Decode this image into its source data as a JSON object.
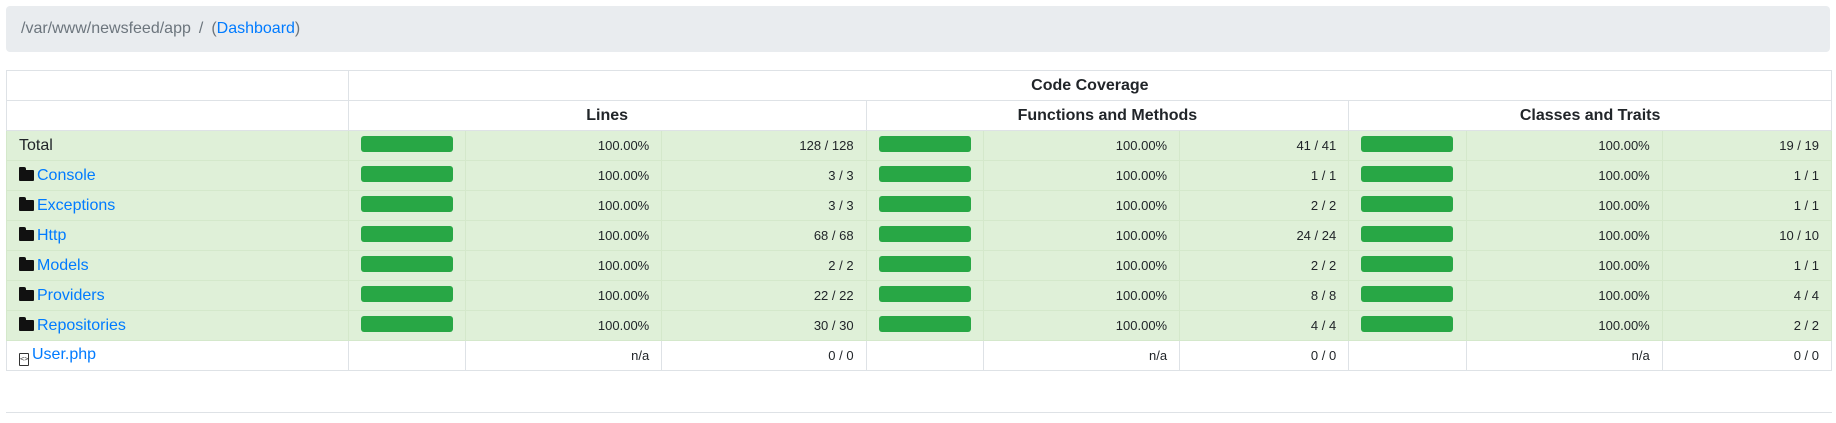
{
  "breadcrumb": {
    "path": "/var/www/newsfeed/app",
    "separator": "/",
    "open_paren": "(",
    "link": "Dashboard",
    "close_paren": ")"
  },
  "table": {
    "header_main": "Code Coverage",
    "header_lines": "Lines",
    "header_functions": "Functions and Methods",
    "header_classes": "Classes and Traits"
  },
  "rows": [
    {
      "name": "Total",
      "lines_pct": "100.00%",
      "lines": "128 / 128",
      "lines_fill": 1.0,
      "fn_pct": "100.00%",
      "fn": "41 / 41",
      "fn_fill": 1.0,
      "cls_pct": "100.00%",
      "cls": "19 / 19",
      "cls_fill": 1.0
    },
    {
      "name": "Console",
      "lines_pct": "100.00%",
      "lines": "3 / 3",
      "lines_fill": 1.0,
      "fn_pct": "100.00%",
      "fn": "1 / 1",
      "fn_fill": 1.0,
      "cls_pct": "100.00%",
      "cls": "1 / 1",
      "cls_fill": 1.0
    },
    {
      "name": "Exceptions",
      "lines_pct": "100.00%",
      "lines": "3 / 3",
      "lines_fill": 1.0,
      "fn_pct": "100.00%",
      "fn": "2 / 2",
      "fn_fill": 1.0,
      "cls_pct": "100.00%",
      "cls": "1 / 1",
      "cls_fill": 1.0
    },
    {
      "name": "Http",
      "lines_pct": "100.00%",
      "lines": "68 / 68",
      "lines_fill": 1.0,
      "fn_pct": "100.00%",
      "fn": "24 / 24",
      "fn_fill": 1.0,
      "cls_pct": "100.00%",
      "cls": "10 / 10",
      "cls_fill": 1.0
    },
    {
      "name": "Models",
      "lines_pct": "100.00%",
      "lines": "2 / 2",
      "lines_fill": 1.0,
      "fn_pct": "100.00%",
      "fn": "2 / 2",
      "fn_fill": 1.0,
      "cls_pct": "100.00%",
      "cls": "1 / 1",
      "cls_fill": 1.0
    },
    {
      "name": "Providers",
      "lines_pct": "100.00%",
      "lines": "22 / 22",
      "lines_fill": 1.0,
      "fn_pct": "100.00%",
      "fn": "8 / 8",
      "fn_fill": 1.0,
      "cls_pct": "100.00%",
      "cls": "4 / 4",
      "cls_fill": 1.0
    },
    {
      "name": "Repositories",
      "lines_pct": "100.00%",
      "lines": "30 / 30",
      "lines_fill": 1.0,
      "fn_pct": "100.00%",
      "fn": "4 / 4",
      "fn_fill": 1.0,
      "cls_pct": "100.00%",
      "cls": "2 / 2",
      "cls_fill": 1.0
    },
    {
      "name": "User.php",
      "lines_pct": "n/a",
      "lines": "0 / 0",
      "fn_pct": "n/a",
      "fn": "0 / 0",
      "cls_pct": "n/a",
      "cls": "0 / 0"
    }
  ],
  "colors": {
    "success_row": "#dff0d8",
    "bar": "#28a745",
    "link": "#007bff"
  }
}
